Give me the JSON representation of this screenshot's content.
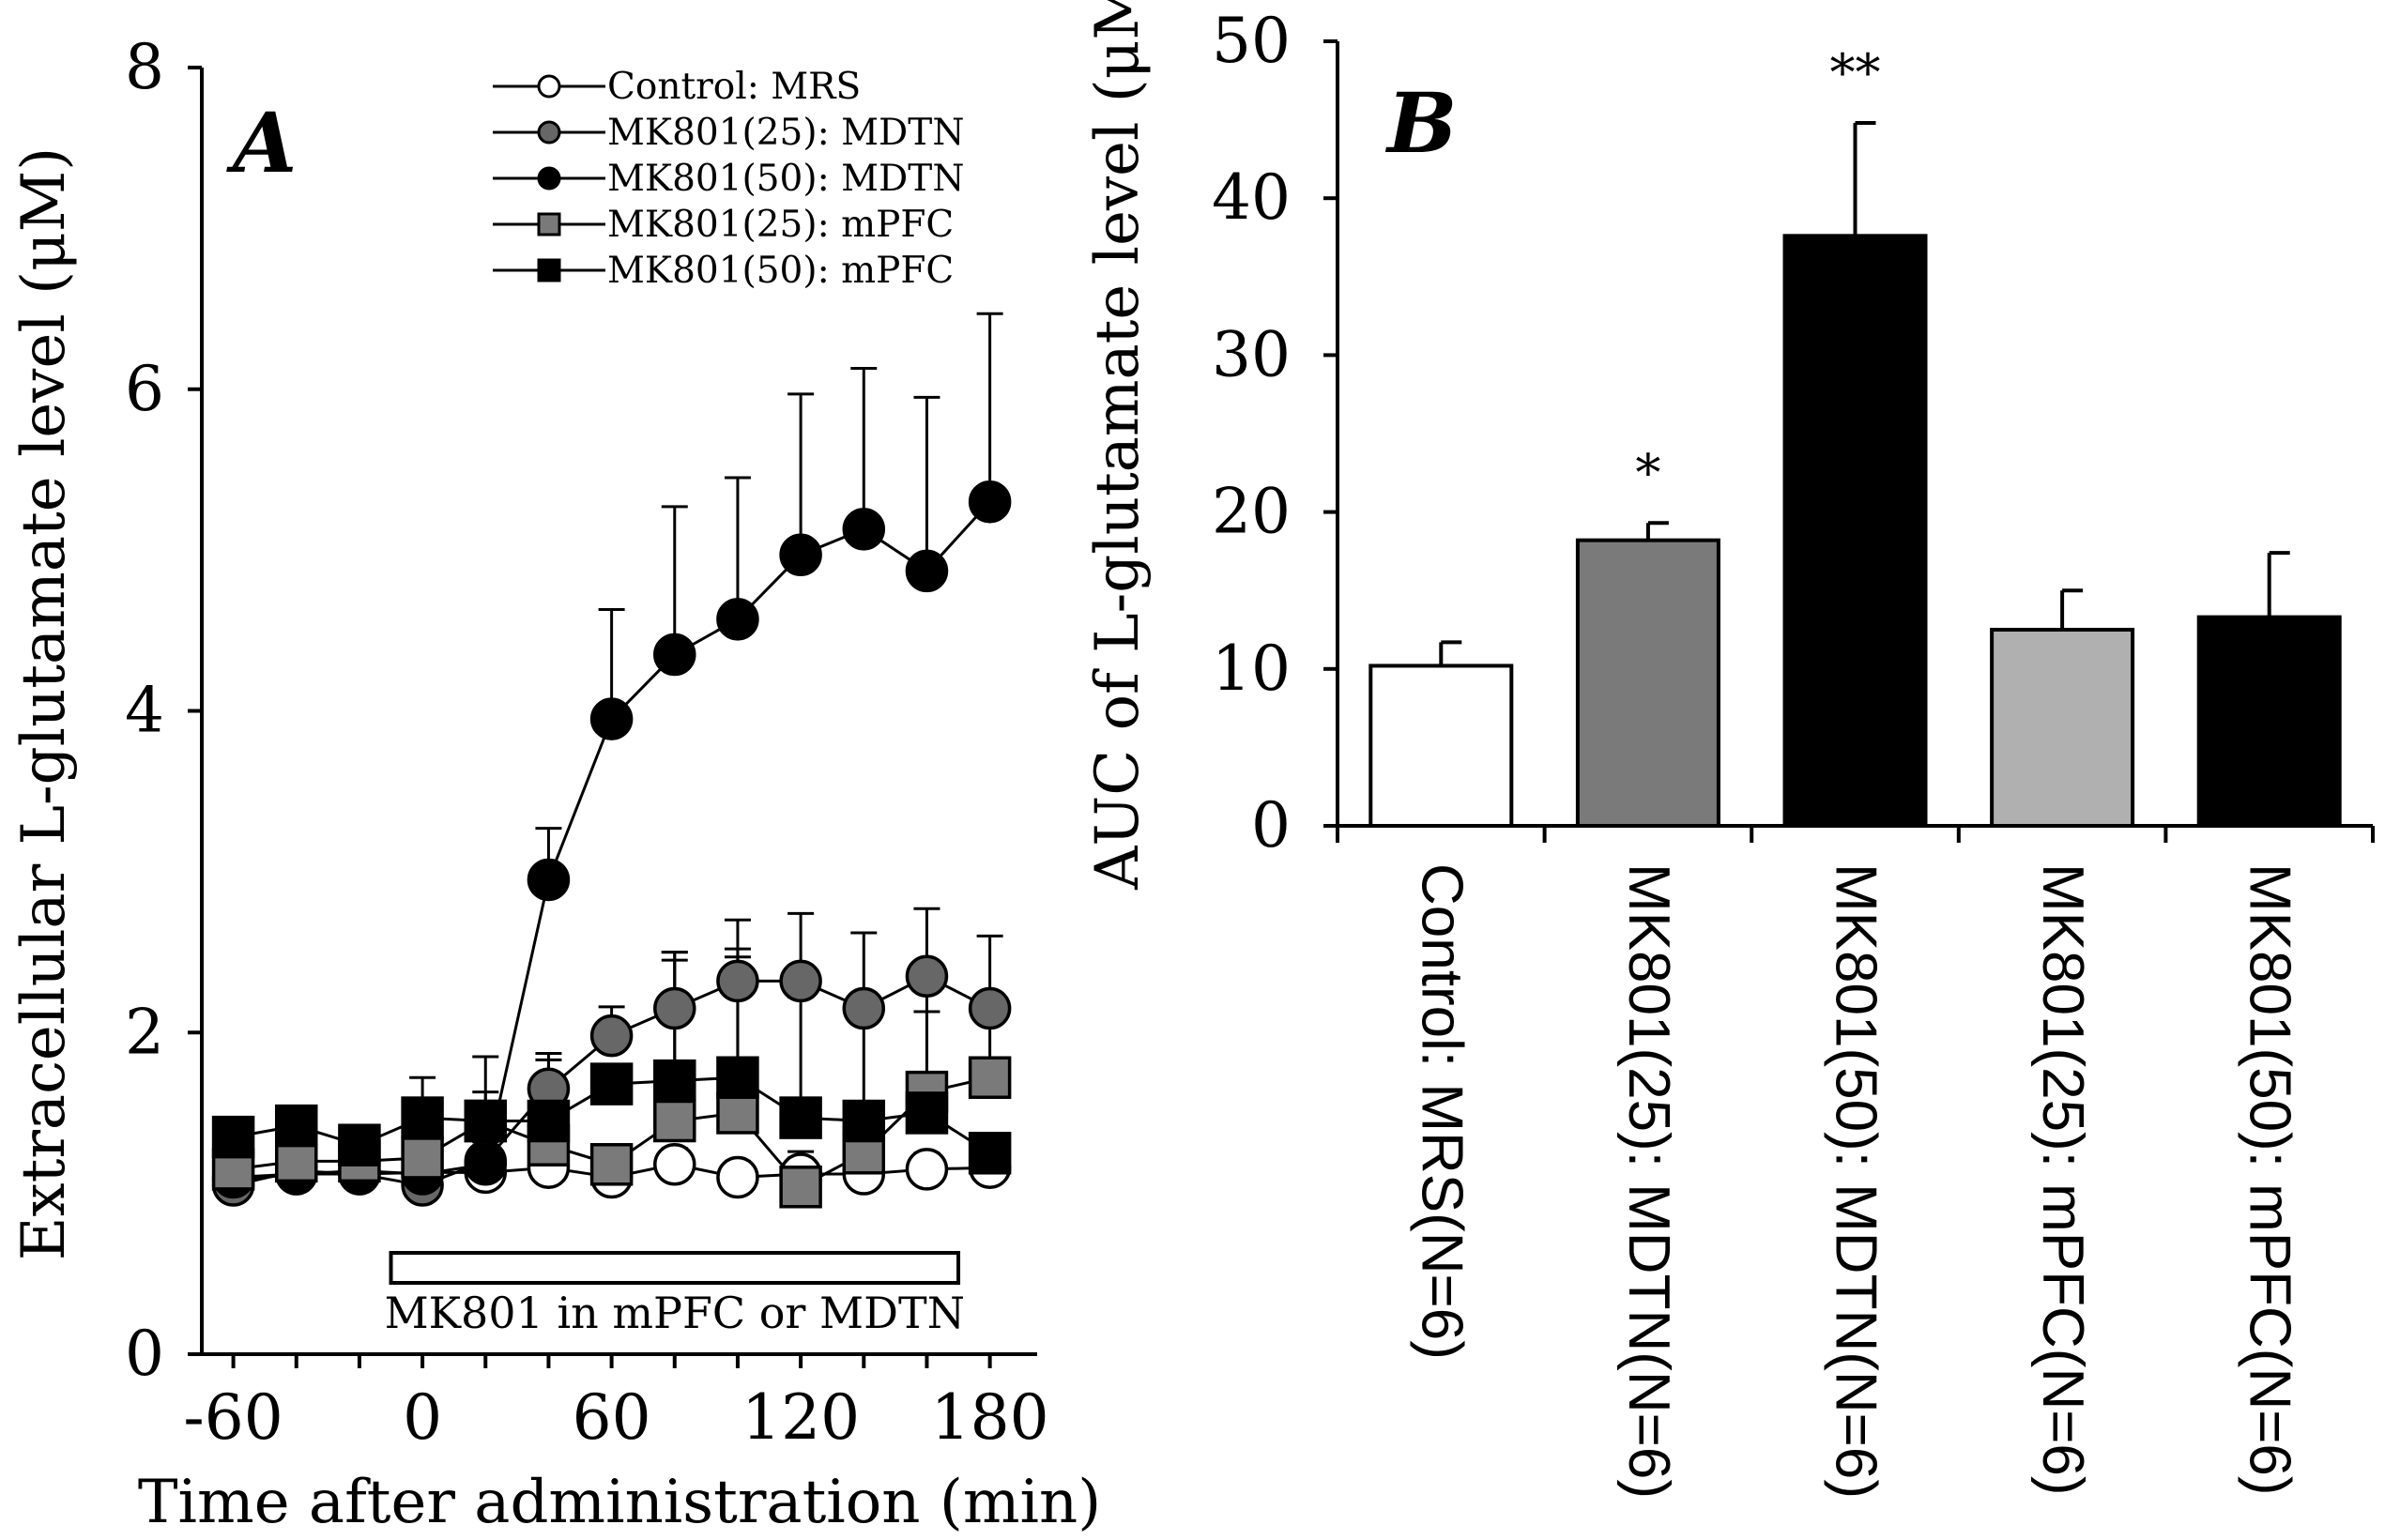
{
  "chart_data": [
    {
      "panel": "A",
      "type": "line",
      "xlabel": "Time after administration (min)",
      "ylabel": "Extracellular L-glutamate level (μM)",
      "xlim": [
        -70,
        195
      ],
      "ylim": [
        0,
        8
      ],
      "xticks": [
        -60,
        0,
        60,
        120,
        180
      ],
      "yticks": [
        0,
        2,
        4,
        6,
        8
      ],
      "annotation": "MK801 in mPFC or MDTN",
      "annotation_range": [
        -10,
        170
      ],
      "x": [
        -60,
        -40,
        -20,
        0,
        20,
        40,
        60,
        80,
        100,
        120,
        140,
        160,
        180
      ],
      "series": [
        {
          "name": "Control: MRS",
          "marker": "circle",
          "fill": "#ffffff",
          "values": [
            1.08,
            1.12,
            1.12,
            1.13,
            1.13,
            1.16,
            1.1,
            1.18,
            1.1,
            1.12,
            1.12,
            1.15,
            1.16
          ],
          "errors": [
            0.08,
            0.08,
            0.1,
            0.08,
            0.08,
            0.1,
            0.1,
            0.1,
            0.1,
            0.1,
            0.1,
            0.1,
            0.1
          ]
        },
        {
          "name": "MK801(25): MDTN",
          "marker": "circle",
          "fill": "#676767",
          "values": [
            1.05,
            1.14,
            1.12,
            1.05,
            1.2,
            1.65,
            1.98,
            2.15,
            2.32,
            2.32,
            2.15,
            2.35,
            2.15
          ],
          "errors": [
            0.1,
            0.1,
            0.12,
            0.08,
            0.12,
            0.22,
            0.18,
            0.35,
            0.38,
            0.42,
            0.47,
            0.42,
            0.45
          ]
        },
        {
          "name": "MK801(50): MDTN",
          "marker": "circle",
          "fill": "#000000",
          "values": [
            1.1,
            1.12,
            1.14,
            1.12,
            1.18,
            2.95,
            3.95,
            4.35,
            4.57,
            4.97,
            5.13,
            4.87,
            5.3
          ],
          "errors": [
            0.08,
            0.08,
            0.1,
            0.08,
            0.1,
            0.32,
            0.68,
            0.92,
            0.88,
            1.0,
            1.0,
            1.08,
            1.17
          ]
        },
        {
          "name": "MK801(25): mPFC",
          "marker": "square",
          "fill": "#7a7a7a",
          "values": [
            1.15,
            1.2,
            1.2,
            1.22,
            1.45,
            1.3,
            1.18,
            1.45,
            1.5,
            1.04,
            1.25,
            1.63,
            1.72
          ],
          "errors": [
            0.1,
            0.1,
            0.12,
            0.1,
            0.4,
            0.15,
            0.12,
            1.0,
            1.02,
            0.22,
            0.3,
            0.5,
            0.42
          ]
        },
        {
          "name": "MK801(50): mPFC",
          "marker": "square",
          "fill": "#000000",
          "values": [
            1.35,
            1.42,
            1.3,
            1.47,
            1.45,
            1.45,
            1.68,
            1.7,
            1.72,
            1.47,
            1.45,
            1.5,
            1.25
          ],
          "errors": [
            0.1,
            0.12,
            0.1,
            0.25,
            0.18,
            0.38,
            0.12,
            0.8,
            0.75,
            0.75,
            0.75,
            0.8,
            0.12
          ]
        }
      ]
    },
    {
      "panel": "B",
      "type": "bar",
      "ylabel": "AUC of L-glutamate level (μM)",
      "ylim": [
        0,
        50
      ],
      "yticks": [
        0,
        10,
        20,
        30,
        40,
        50
      ],
      "categories": [
        "Control: MRS(N=6)",
        "MK801(25): MDTN(N=6)",
        "MK801(50): MDTN(N=6)",
        "MK801(25): mPFC(N=6)",
        "MK801(50): mPFC(N=6)"
      ],
      "values": [
        10.2,
        18.2,
        37.6,
        12.5,
        13.3
      ],
      "errors": [
        1.5,
        1.1,
        7.2,
        2.5,
        4.1
      ],
      "colors": [
        "#ffffff",
        "#7a7a7a",
        "#000000",
        "#b0b0b0",
        "#000000"
      ],
      "significance": [
        "",
        "*",
        "**",
        "",
        ""
      ]
    }
  ]
}
